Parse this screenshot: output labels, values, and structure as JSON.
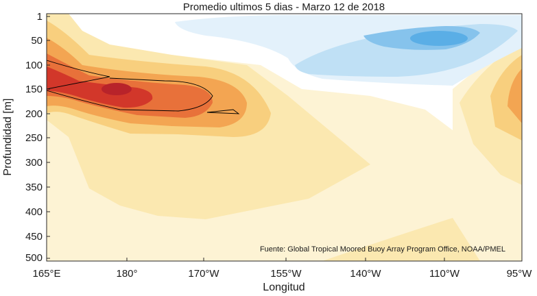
{
  "chart_data": {
    "type": "heatmap",
    "title": "Promedio ultimos 5 dias - Marzo 12 de 2018",
    "xlabel": "Longitud",
    "ylabel": "Profundidad [m]",
    "x_ticks": [
      "165°E",
      "180°",
      "170°W",
      "155°W",
      "140°W",
      "110°W",
      "95°W"
    ],
    "y_ticks": [
      "1",
      "50",
      "100",
      "150",
      "200",
      "250",
      "300",
      "350",
      "400",
      "450",
      "500"
    ],
    "source_note": "Fuente: Global Tropical Moored Buoy Array Program Office, NOAA/PMEL",
    "xlim": [
      165,
      265
    ],
    "ylim": [
      500,
      1
    ],
    "grid": false,
    "field_description_levels": [
      -3,
      -2,
      -1,
      0,
      1,
      2,
      3,
      4,
      5
    ],
    "colors": {
      "neg3": "#5aaee6",
      "neg2": "#86c3ec",
      "neg1": "#bfe0f5",
      "neg0": "#e3f1fb",
      "zero": "#ffffff",
      "pos0": "#fdf3d4",
      "pos1": "#fbe8b0",
      "pos2": "#f8cf7e",
      "pos3": "#f3a552",
      "pos4": "#e8713a",
      "pos5": "#d2372a",
      "contour": "#000000"
    }
  }
}
